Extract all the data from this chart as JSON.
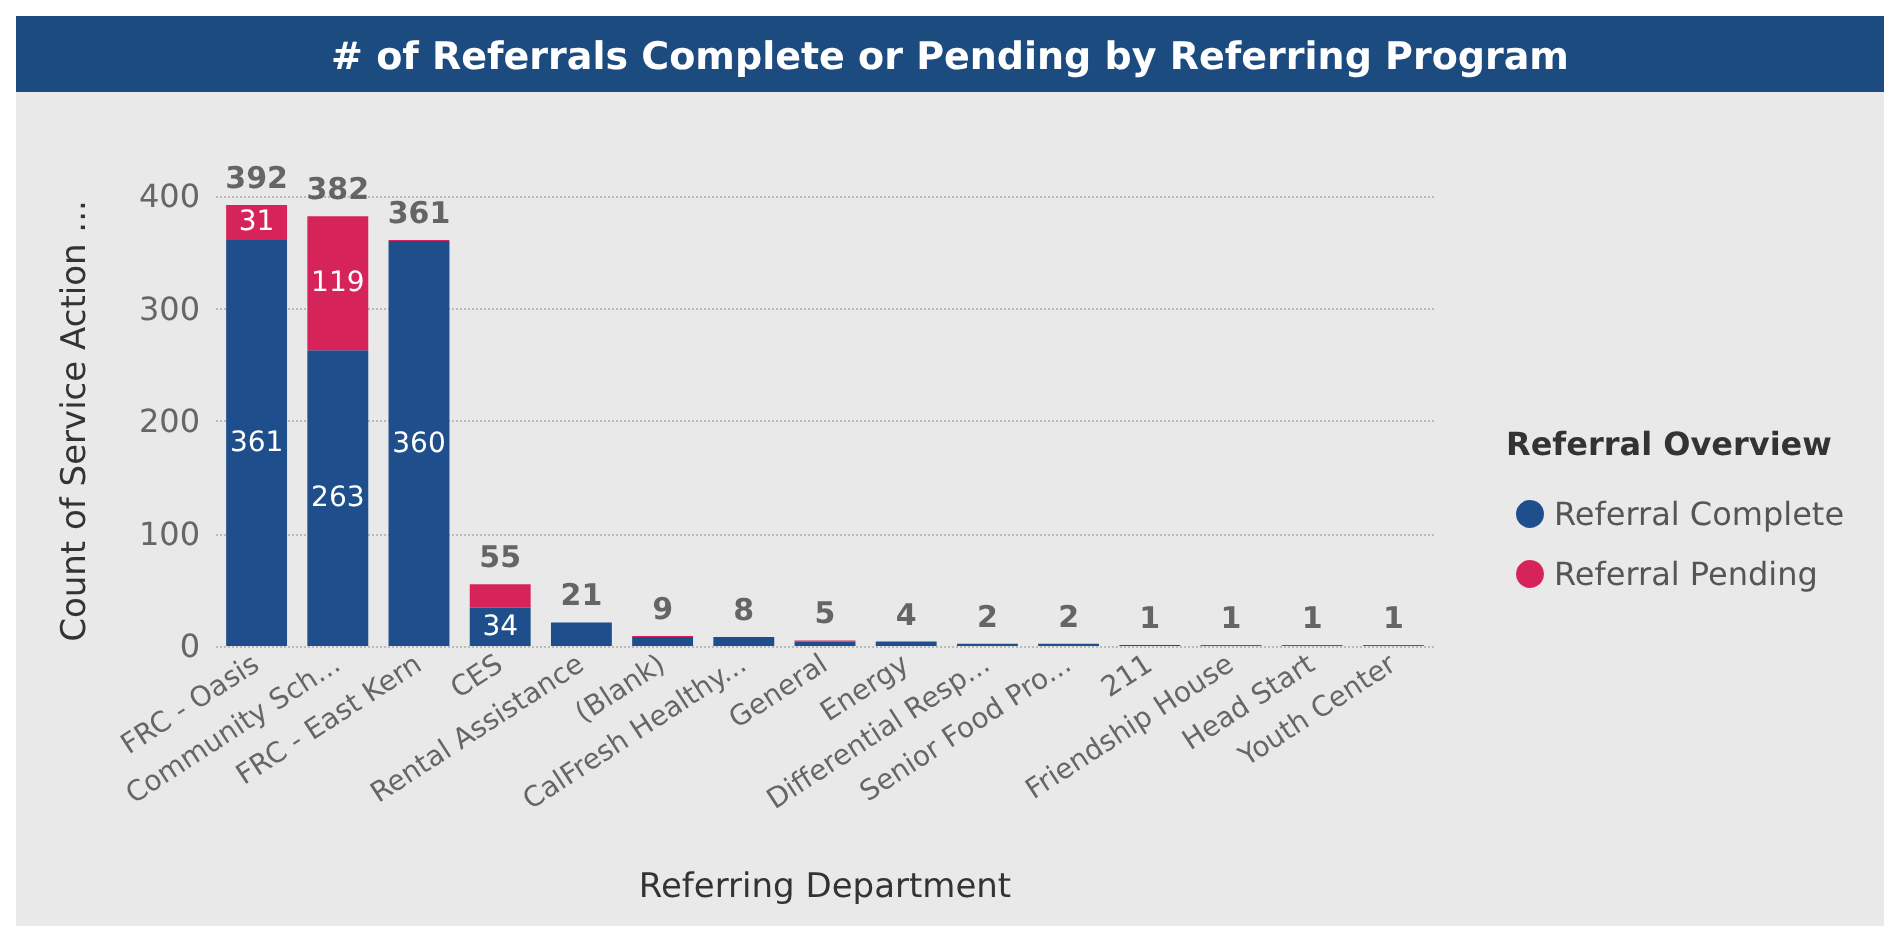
{
  "chart_data": {
    "type": "bar",
    "title": "# of Referrals Complete or Pending by Referring Program",
    "xlabel": "Referring Department",
    "ylabel": "Count of Service Action ...",
    "legend_title": "Referral Overview",
    "categories": [
      "FRC - Oasis",
      "Community Sch...",
      "FRC - East Kern",
      "CES",
      "Rental Assistance",
      "(Blank)",
      "CalFresh Healthy...",
      "General",
      "Energy",
      "Differential Resp...",
      "Senior Food Pro...",
      "211",
      "Friendship House",
      "Head Start",
      "Youth Center"
    ],
    "series": [
      {
        "name": "Referral Complete",
        "color": "#1f4e8c",
        "values": [
          361,
          263,
          360,
          34,
          21,
          8,
          8,
          4,
          4,
          2,
          2,
          1,
          0,
          0,
          0
        ],
        "value_labels": [
          "361",
          "263",
          "360",
          "34",
          null,
          null,
          null,
          null,
          null,
          null,
          null,
          null,
          null,
          null,
          null
        ]
      },
      {
        "name": "Referral Pending",
        "color": "#d6245a",
        "values": [
          31,
          119,
          1,
          21,
          0,
          1,
          0,
          1,
          0,
          0,
          0,
          0,
          1,
          1,
          1
        ],
        "value_labels": [
          "31",
          "119",
          null,
          null,
          null,
          null,
          null,
          null,
          null,
          null,
          null,
          null,
          null,
          null,
          null
        ]
      }
    ],
    "stacked": true,
    "totals": [
      "392",
      "382",
      "361",
      "55",
      "21",
      "9",
      "8",
      "5",
      "4",
      "2",
      "2",
      "1",
      "1",
      "1",
      "1"
    ],
    "ylim": [
      0,
      400
    ],
    "yticks": [
      0,
      100,
      200,
      300,
      400
    ],
    "grid": "y",
    "legend": "right"
  }
}
